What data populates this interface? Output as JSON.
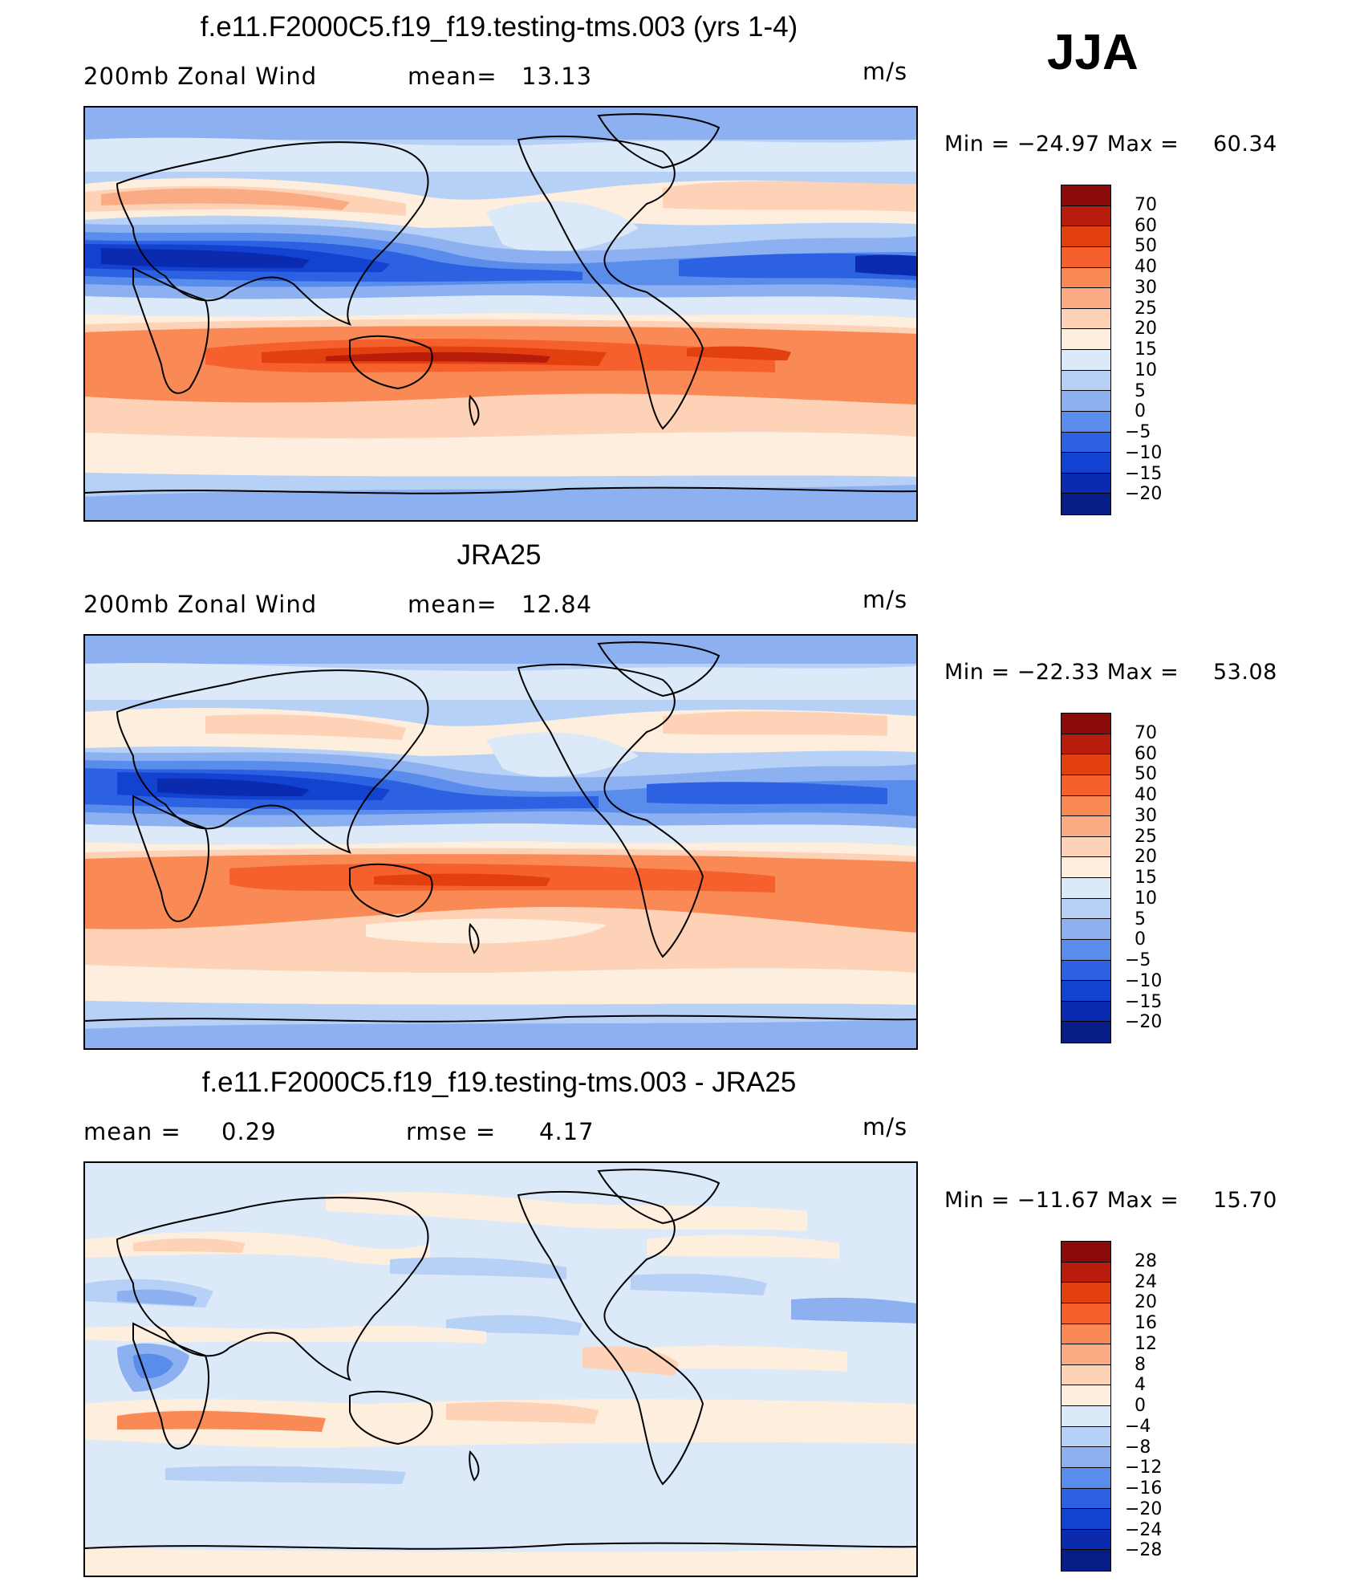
{
  "season": "JJA",
  "panels": [
    {
      "title": "f.e11.F2000C5.f19_f19.testing-tms.003 (yrs 1-4)",
      "left_label": "200mb  Zonal  Wind",
      "stat_label": "mean=",
      "stat_value": "13.13",
      "units": "m/s",
      "min_label": "Min  =  −24.97  Max  =",
      "max_value": "60.34"
    },
    {
      "title": "JRA25",
      "left_label": "200mb  Zonal  Wind",
      "stat_label": "mean=",
      "stat_value": "12.84",
      "units": "m/s",
      "min_label": "Min  =  −22.33  Max  =",
      "max_value": "53.08"
    },
    {
      "title": "f.e11.F2000C5.f19_f19.testing-tms.003 - JRA25",
      "left_label": "mean  =",
      "left_value": "0.29",
      "stat_label": "rmse  =",
      "stat_value": "4.17",
      "units": "m/s",
      "min_label": "Min  =  −11.67  Max  =",
      "max_value": "15.70"
    }
  ],
  "chart_data": [
    {
      "type": "heatmap",
      "title": "f.e11.F2000C5.f19_f19.testing-tms.003 (yrs 1-4)",
      "variable": "200mb Zonal Wind",
      "units": "m/s",
      "mean": 13.13,
      "min": -24.97,
      "max": 60.34,
      "colorbar_levels": [
        "70",
        "60",
        "50",
        "40",
        "30",
        "25",
        "20",
        "15",
        "10",
        "5",
        "0",
        "−5",
        "−10",
        "−15",
        "−20"
      ],
      "colors": [
        "#8b0a0a",
        "#b81c0c",
        "#e2400f",
        "#f5602c",
        "#fa8a55",
        "#fbab84",
        "#fdd2b6",
        "#fdeede",
        "#dce9f8",
        "#b7d0f5",
        "#8db1f0",
        "#5a8cec",
        "#2c62e2",
        "#1342d0",
        "#0a2bb0",
        "#061c86"
      ]
    },
    {
      "type": "heatmap",
      "title": "JRA25",
      "variable": "200mb Zonal Wind",
      "units": "m/s",
      "mean": 12.84,
      "min": -22.33,
      "max": 53.08,
      "colorbar_levels": [
        "70",
        "60",
        "50",
        "40",
        "30",
        "25",
        "20",
        "15",
        "10",
        "5",
        "0",
        "−5",
        "−10",
        "−15",
        "−20"
      ],
      "colors": [
        "#8b0a0a",
        "#b81c0c",
        "#e2400f",
        "#f5602c",
        "#fa8a55",
        "#fbab84",
        "#fdd2b6",
        "#fdeede",
        "#dce9f8",
        "#b7d0f5",
        "#8db1f0",
        "#5a8cec",
        "#2c62e2",
        "#1342d0",
        "#0a2bb0",
        "#061c86"
      ]
    },
    {
      "type": "heatmap",
      "title": "f.e11.F2000C5.f19_f19.testing-tms.003 - JRA25",
      "units": "m/s",
      "mean": 0.29,
      "rmse": 4.17,
      "min": -11.67,
      "max": 15.7,
      "colorbar_levels": [
        "28",
        "24",
        "20",
        "16",
        "12",
        "8",
        "4",
        "0",
        "−4",
        "−8",
        "−12",
        "−16",
        "−20",
        "−24",
        "−28"
      ],
      "colors": [
        "#8b0a0a",
        "#b81c0c",
        "#e2400f",
        "#f5602c",
        "#fa8a55",
        "#fbab84",
        "#fdd2b6",
        "#fdeede",
        "#dce9f8",
        "#b7d0f5",
        "#8db1f0",
        "#5a8cec",
        "#2c62e2",
        "#1342d0",
        "#0a2bb0",
        "#061c86"
      ]
    }
  ]
}
